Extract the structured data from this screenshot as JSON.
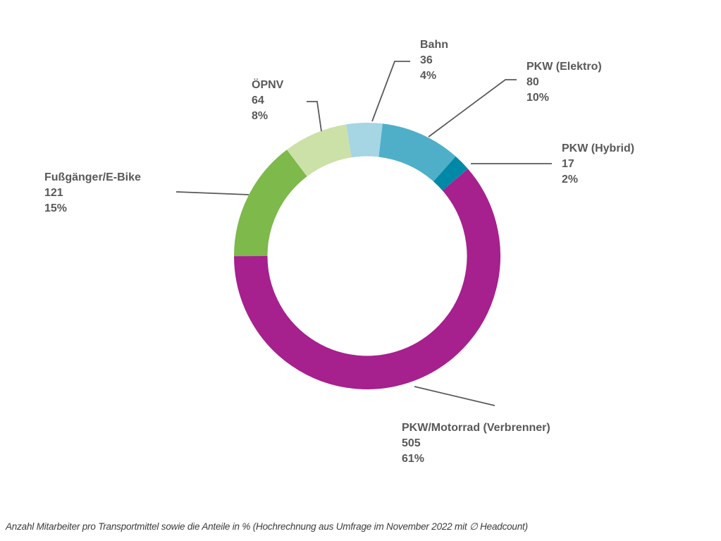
{
  "caption": "Anzahl Mitarbeiter pro Transportmittel sowie die Anteile in % (Hochrechnung aus Umfrage im November 2022 mit ∅ Headcount)",
  "chart_data": {
    "type": "pie",
    "subtype": "donut",
    "start_angle_deg": -9.1,
    "direction": "clockwise",
    "legend_position": "callout-labels",
    "colors": {
      "leader_line": "#595959",
      "label_text": "#595959",
      "background": "#ffffff"
    },
    "segments": [
      {
        "label": "Bahn",
        "value": 36,
        "pct": "4%",
        "color": "#A6D5E3"
      },
      {
        "label": "PKW (Elektro)",
        "value": 80,
        "pct": "10%",
        "color": "#4FAFC9"
      },
      {
        "label": "PKW (Hybrid)",
        "value": 17,
        "pct": "2%",
        "color": "#0089A6"
      },
      {
        "label": "PKW/Motorrad (Verbrenner)",
        "value": 505,
        "pct": "61%",
        "color": "#A6208E"
      },
      {
        "label": "Fußgänger/E-Bike",
        "value": 121,
        "pct": "15%",
        "color": "#7DB94B"
      },
      {
        "label": "ÖPNV",
        "value": 64,
        "pct": "8%",
        "color": "#CCE1A7"
      }
    ]
  }
}
